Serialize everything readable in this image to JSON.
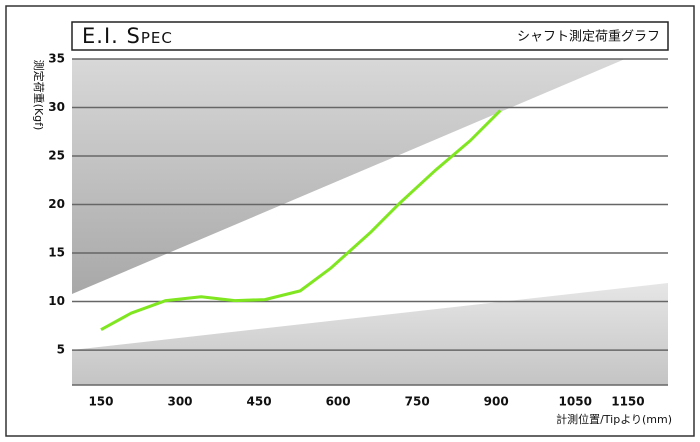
{
  "chart_data": {
    "type": "line",
    "title": "E.I. Spec",
    "subtitle": "シャフト測定荷重グラフ",
    "y_label": "測定荷重(Kgf)",
    "x_label": "計測位置/Tipより(mm)",
    "x": [
      150,
      207,
      273,
      340,
      404,
      461,
      528,
      585,
      661,
      718,
      784,
      851,
      908
    ],
    "series": [
      {
        "name": "E.I.",
        "color": "#7fe620",
        "values": [
          7.1,
          8.8,
          10.1,
          10.5,
          10.1,
          10.2,
          11.1,
          13.4,
          17.1,
          20.2,
          23.5,
          26.6,
          29.7
        ]
      }
    ],
    "xlim": [
      95,
      1226
    ],
    "xticks": [
      150,
      300,
      450,
      600,
      750,
      900,
      1050,
      1150
    ],
    "ylim": [
      1.4,
      35
    ],
    "yticks": [
      5,
      10,
      15,
      20,
      25,
      30,
      35
    ],
    "grid": true
  }
}
